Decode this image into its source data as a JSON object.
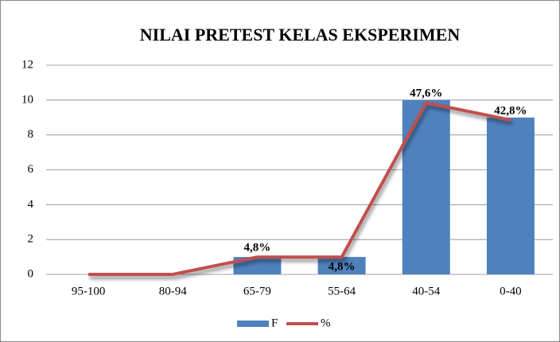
{
  "chart_data": {
    "type": "bar_line",
    "title": "NILAI PRETEST KELAS EKSPERIMEN",
    "categories": [
      "95-100",
      "80-94",
      "65-79",
      "55-64",
      "40-54",
      "0-40"
    ],
    "series": [
      {
        "name": "F",
        "type": "bar",
        "color": "#4f81bd",
        "values": [
          0,
          0,
          1,
          1,
          10,
          9
        ]
      },
      {
        "name": "%",
        "type": "line",
        "axis": "y2",
        "color": "#c0504d",
        "values": [
          0,
          0,
          4.8,
          4.8,
          47.6,
          42.8
        ],
        "value_labels": [
          null,
          null,
          "4,8%",
          "4,8%",
          "47,6%",
          "42,8%"
        ]
      }
    ],
    "ylim": [
      0,
      12
    ],
    "yticks": [
      0,
      2,
      4,
      6,
      8,
      10,
      12
    ],
    "y2lim": [
      0,
      58
    ],
    "grid": true,
    "legend": "bottom"
  }
}
